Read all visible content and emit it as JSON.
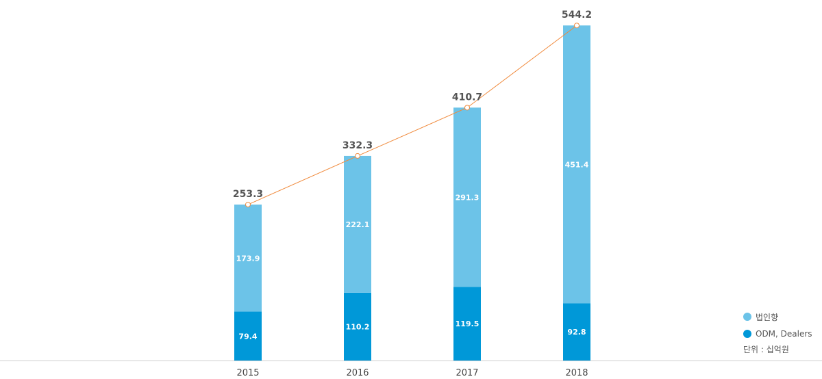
{
  "chart_data": {
    "type": "bar",
    "stacked": true,
    "categories": [
      "2015",
      "2016",
      "2017",
      "2018"
    ],
    "series": [
      {
        "name": "ODM, Dealers",
        "values": [
          79.4,
          110.2,
          119.5,
          92.8
        ],
        "color": "#0098d8"
      },
      {
        "name": "법인향",
        "values": [
          173.9,
          222.1,
          291.3,
          451.4
        ],
        "color": "#6cc3e8"
      }
    ],
    "totals": {
      "type": "line",
      "values": [
        253.3,
        332.3,
        410.7,
        544.2
      ],
      "labels": [
        "253.3",
        "332.3",
        "410.7",
        "544.2"
      ],
      "color": "#f08a3c"
    },
    "segment_labels": {
      "ODM, Dealers": [
        "79.4",
        "110.2",
        "119.5",
        "92.8"
      ],
      "법인향": [
        "173.9",
        "222.1",
        "291.3",
        "451.4"
      ]
    },
    "ylim": [
      0,
      560
    ],
    "grid": false,
    "legend_position": "bottom-right",
    "unit_note": "단위 : 십억원",
    "axis_color": "#cccccc"
  }
}
